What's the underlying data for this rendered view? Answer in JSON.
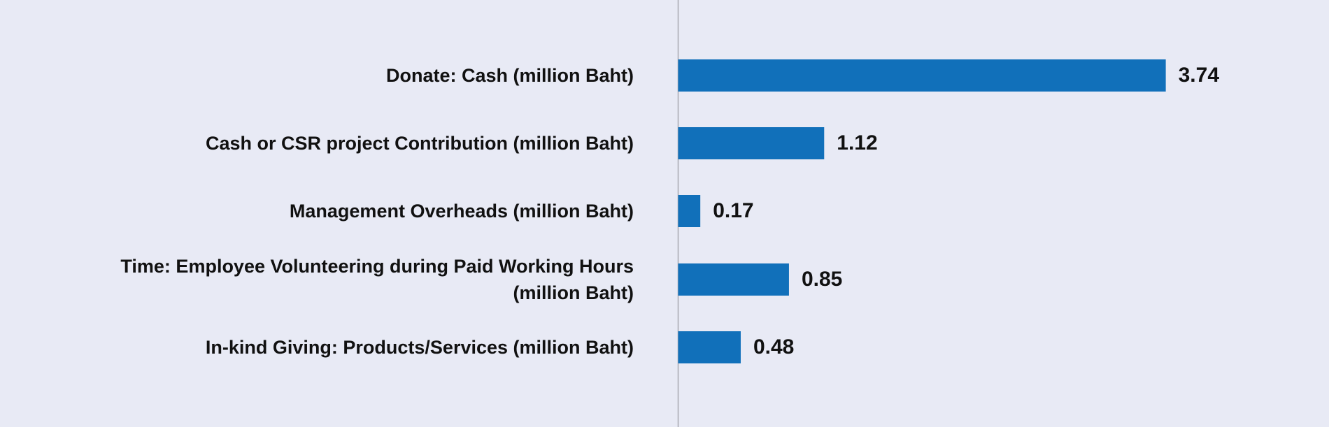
{
  "chart_data": {
    "type": "bar",
    "orientation": "horizontal",
    "categories": [
      "Donate: Cash (million Baht)",
      "Cash or CSR project Contribution (million Baht)",
      "Management Overheads (million Baht)",
      "Time: Employee Volunteering during Paid Working Hours (million Baht)",
      "In-kind Giving: Products/Services (million Baht)"
    ],
    "values": [
      3.74,
      1.12,
      0.17,
      0.85,
      0.48
    ],
    "color": "#1170ba",
    "xlim": [
      0,
      4
    ]
  }
}
